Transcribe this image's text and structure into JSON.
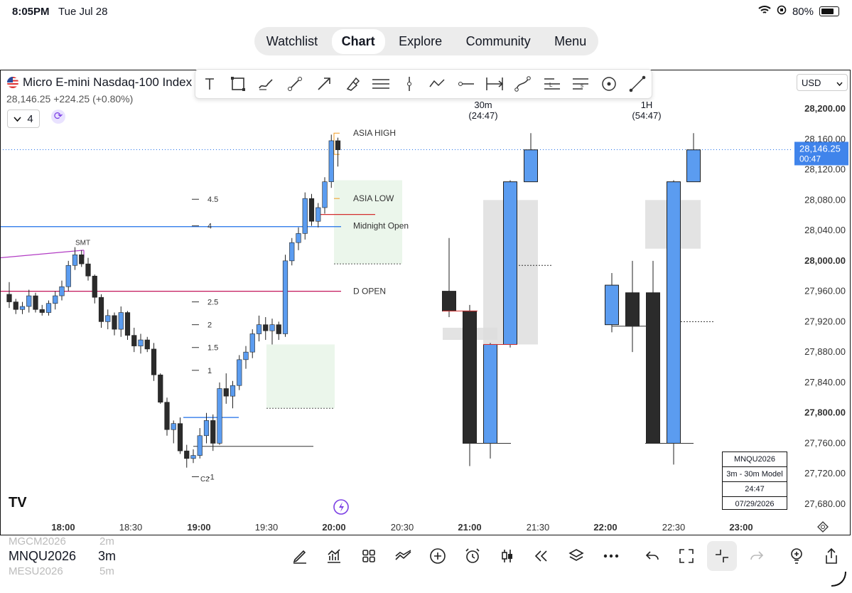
{
  "status_bar": {
    "time": "8:05PM",
    "date": "Tue Jul 28",
    "battery": "80%"
  },
  "nav": {
    "items": [
      "Watchlist",
      "Chart",
      "Explore",
      "Community",
      "Menu"
    ],
    "active": "Chart"
  },
  "instrument": {
    "title": "Micro E-mini Nasdaq-100 Index F",
    "price": "28,146.25",
    "change": "+224.25",
    "change_pct": "(+0.80%)",
    "interval_value": "4"
  },
  "currency": "USD",
  "timeframe_labels": [
    {
      "tf": "30m",
      "countdown": "(24:47)"
    },
    {
      "tf": "1H",
      "countdown": "(54:47)"
    }
  ],
  "info_box": [
    "MNQU2026",
    "3m - 30m Model",
    "24:47",
    "07/29/2026"
  ],
  "bottom": {
    "symbol": "MNQU2026",
    "timeframe": "3m",
    "symbol_above": "MGCM2026",
    "timeframe_above": "2m",
    "symbol_below": "MESU2026",
    "timeframe_below": "5m"
  },
  "tool_icons": [
    "text-icon",
    "rectangle-icon",
    "brush-icon",
    "trendline-icon",
    "arrow-icon",
    "highlighter-icon",
    "parallel-channel-icon",
    "vertical-line-icon",
    "path-icon",
    "horizontal-ray-icon",
    "date-range-icon",
    "curve-icon",
    "long-position-icon",
    "short-position-icon",
    "circle-icon",
    "measure-icon"
  ],
  "bottom_icons": [
    "pencil-icon",
    "indicators-icon",
    "layout-icon",
    "compare-icon",
    "add-icon",
    "alarm-icon",
    "candles-icon",
    "replay-icon",
    "layers-icon",
    "more-icon",
    "undo-icon",
    "fullscreen-icon",
    "collapse-icon",
    "redo-icon",
    "ideas-icon",
    "share-icon"
  ],
  "colors": {
    "bull": "#5b9cf0",
    "bear": "#2b2b2b",
    "price_line": "#1e6fe8",
    "accent": "#7b3fe4",
    "d_open": "#c2185b",
    "asia": "#f29b21"
  },
  "chart_data": {
    "type": "candlestick",
    "ylim": [
      27660,
      28220
    ],
    "y_ticks": [
      28200,
      28160,
      28120,
      28080,
      28040,
      28000,
      27960,
      27920,
      27880,
      27840,
      27800,
      27760,
      27720,
      27680
    ],
    "y_tick_labels": [
      "28,200.00",
      "28,160.00",
      "28,120.00",
      "28,080.00",
      "28,040.00",
      "28,000.00",
      "27,960.00",
      "27,920.00",
      "27,880.00",
      "27,840.00",
      "27,800.00",
      "27,760.00",
      "27,720.00",
      "27,680.00"
    ],
    "x_ticks": [
      "18:00",
      "18:30",
      "19:00",
      "19:30",
      "20:00",
      "20:30",
      "21:00",
      "21:30",
      "22:00",
      "22:30",
      "23:00"
    ],
    "current_price": 28146.25,
    "current_price_label": "28,146.25",
    "countdown": "00:47",
    "series_3m": [
      [
        27956,
        27972,
        27938,
        27946
      ],
      [
        27946,
        27950,
        27930,
        27936
      ],
      [
        27936,
        27946,
        27930,
        27940
      ],
      [
        27940,
        27962,
        27932,
        27954
      ],
      [
        27954,
        27958,
        27932,
        27936
      ],
      [
        27936,
        27942,
        27928,
        27932
      ],
      [
        27932,
        27948,
        27928,
        27944
      ],
      [
        27944,
        27960,
        27936,
        27954
      ],
      [
        27954,
        27974,
        27948,
        27966
      ],
      [
        27966,
        28000,
        27960,
        27994
      ],
      [
        27994,
        28018,
        27988,
        28008
      ],
      [
        28008,
        28014,
        27992,
        27996
      ],
      [
        27996,
        28004,
        27974,
        27980
      ],
      [
        27980,
        27982,
        27944,
        27952
      ],
      [
        27952,
        27956,
        27912,
        27920
      ],
      [
        27920,
        27936,
        27910,
        27928
      ],
      [
        27928,
        27932,
        27902,
        27910
      ],
      [
        27910,
        27940,
        27900,
        27932
      ],
      [
        27932,
        27934,
        27896,
        27902
      ],
      [
        27902,
        27912,
        27880,
        27888
      ],
      [
        27888,
        27904,
        27878,
        27896
      ],
      [
        27896,
        27900,
        27880,
        27884
      ],
      [
        27884,
        27892,
        27842,
        27850
      ],
      [
        27850,
        27852,
        27812,
        27814
      ],
      [
        27814,
        27820,
        27770,
        27778
      ],
      [
        27778,
        27790,
        27760,
        27786
      ],
      [
        27786,
        27794,
        27746,
        27750
      ],
      [
        27750,
        27758,
        27728,
        27740
      ],
      [
        27740,
        27752,
        27734,
        27744
      ],
      [
        27744,
        27780,
        27740,
        27770
      ],
      [
        27770,
        27800,
        27760,
        27790
      ],
      [
        27790,
        27798,
        27750,
        27760
      ],
      [
        27760,
        27840,
        27758,
        27832
      ],
      [
        27832,
        27852,
        27812,
        27822
      ],
      [
        27822,
        27842,
        27806,
        27836
      ],
      [
        27836,
        27876,
        27830,
        27870
      ],
      [
        27870,
        27888,
        27858,
        27880
      ],
      [
        27880,
        27910,
        27872,
        27904
      ],
      [
        27904,
        27928,
        27894,
        27916
      ],
      [
        27916,
        27926,
        27896,
        27908
      ],
      [
        27908,
        27924,
        27890,
        27916
      ],
      [
        27916,
        27920,
        27896,
        27904
      ],
      [
        27904,
        28008,
        27900,
        28000
      ],
      [
        28000,
        28030,
        27994,
        28024
      ],
      [
        28024,
        28044,
        28014,
        28036
      ],
      [
        28036,
        28090,
        28028,
        28082
      ],
      [
        28082,
        28088,
        28046,
        28052
      ],
      [
        28052,
        28076,
        28044,
        28070
      ],
      [
        28070,
        28110,
        28062,
        28104
      ],
      [
        28104,
        28166,
        28096,
        28158
      ],
      [
        28158,
        28162,
        28124,
        28146
      ]
    ],
    "series_30m": [
      [
        27960,
        28030,
        27926,
        27934
      ],
      [
        27934,
        27942,
        27730,
        27760
      ],
      [
        27760,
        27892,
        27740,
        27890
      ],
      [
        27890,
        28106,
        27886,
        28104
      ],
      [
        28104,
        28168,
        28104,
        28146
      ]
    ],
    "series_1h": [
      [
        27916,
        27984,
        27906,
        27968
      ],
      [
        27958,
        28000,
        27880,
        27914
      ],
      [
        27958,
        28000,
        27760,
        27760
      ],
      [
        27760,
        28106,
        27732,
        28104
      ],
      [
        28104,
        28168,
        28104,
        28146
      ]
    ],
    "annotations": [
      "ASIA HIGH",
      "ASIA LOW",
      "Midnight Open",
      "D OPEN",
      "SMT",
      "C2"
    ],
    "fib_labels": [
      "4.5",
      "4",
      "2.5",
      "2",
      "1.5",
      "1",
      "-1"
    ]
  }
}
